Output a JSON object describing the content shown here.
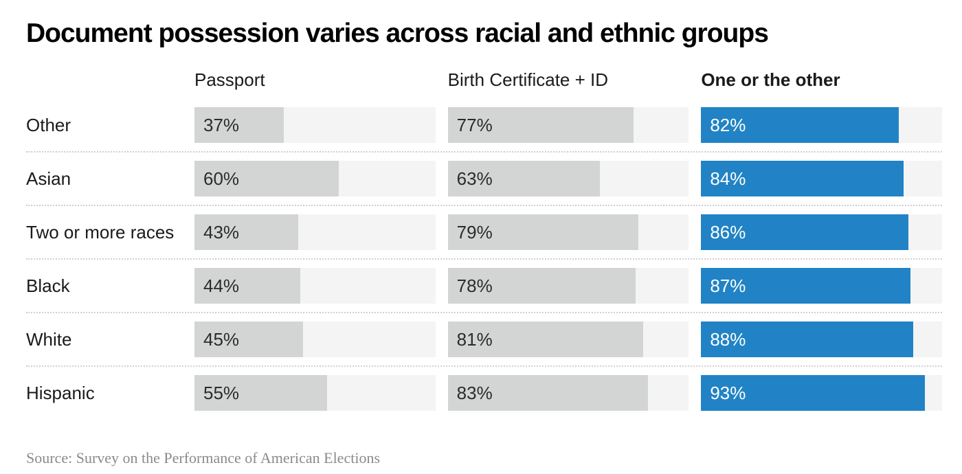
{
  "title": "Document possession varies across racial and ethnic groups",
  "source": "Source: Survey on the Performance of American Elections",
  "colors": {
    "bar_gray": "#d3d5d4",
    "bar_blue": "#2183c5",
    "track_background": "#f4f4f4",
    "value_text_dark": "#2b2b2b",
    "value_text_light": "#ffffff"
  },
  "chart_data": {
    "type": "bar",
    "orientation": "horizontal",
    "title": "Document possession varies across racial and ethnic groups",
    "categories": [
      "Other",
      "Asian",
      "Two or more races",
      "Black",
      "White",
      "Hispanic"
    ],
    "series": [
      {
        "name": "Passport",
        "values": [
          37,
          60,
          43,
          44,
          45,
          55
        ],
        "emphasis": false
      },
      {
        "name": "Birth Certificate + ID",
        "values": [
          77,
          63,
          79,
          78,
          81,
          83
        ],
        "emphasis": false
      },
      {
        "name": "One or the other",
        "values": [
          82,
          84,
          86,
          87,
          88,
          93
        ],
        "emphasis": true
      }
    ],
    "value_suffix": "%",
    "xlim": [
      0,
      100
    ],
    "grid": false,
    "legend_position": "column-headers",
    "source": "Source: Survey on the Performance of American Elections"
  }
}
